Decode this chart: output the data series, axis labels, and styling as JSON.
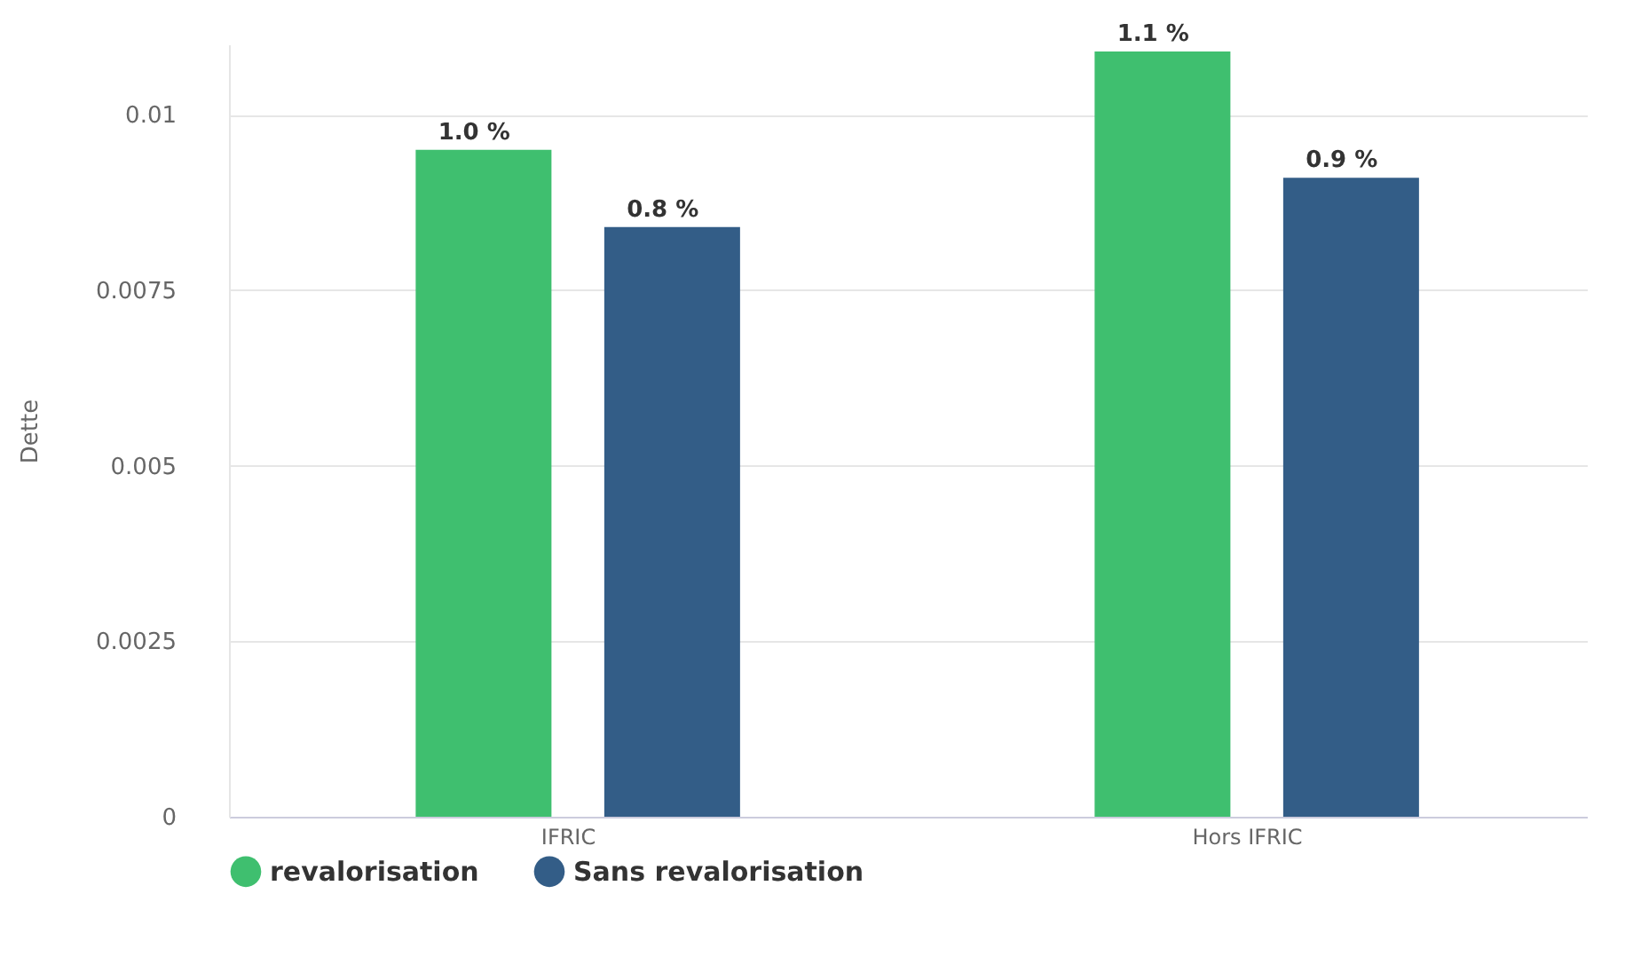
{
  "chart_data": {
    "type": "bar",
    "ylabel": "Dette",
    "categories": [
      "IFRIC",
      "Hors IFRIC"
    ],
    "series": [
      {
        "name": "revalorisation",
        "color": "#3fbf6f",
        "values": [
          0.0095,
          0.0109
        ],
        "value_labels": [
          "1.0 %",
          "1.1 %"
        ]
      },
      {
        "name": "Sans revalorisation",
        "color": "#335d87",
        "values": [
          0.0084,
          0.0091
        ],
        "value_labels": [
          "0.8 %",
          "0.9 %"
        ]
      }
    ],
    "ylim": [
      0,
      0.011
    ],
    "yticks": [
      0,
      0.0025,
      0.005,
      0.0075,
      0.01
    ],
    "grid": "y",
    "legend": "bottom"
  }
}
